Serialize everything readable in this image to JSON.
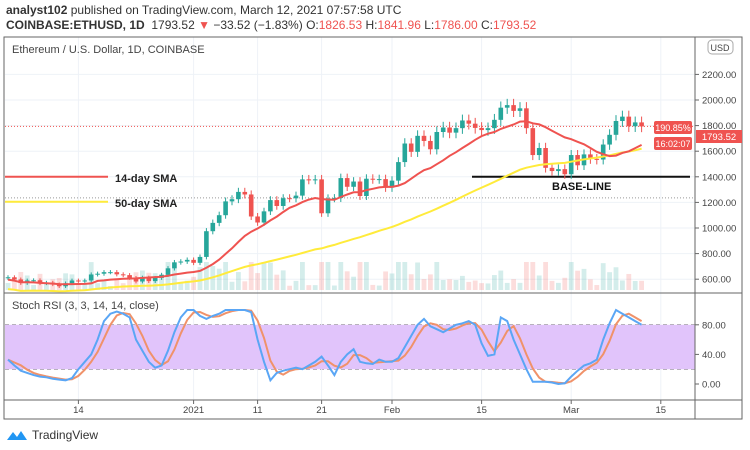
{
  "header": {
    "author": "analyst102",
    "published": "published on TradingView.com, March 12, 2021 07:57:58 UTC",
    "symbol": "COINBASE:ETHUSD, 1D",
    "price": "1793.52",
    "change": "−33.52 (−1.83%)",
    "o_label": "O:",
    "o": "1826.53",
    "h_label": "H:",
    "h": "1841.96",
    "l_label": "L:",
    "l": "1786.00",
    "c_label": "C:",
    "c": "1793.52"
  },
  "chart_title": "Ethereum / U.S. Dollar, 1D, COINBASE",
  "currency": "USD",
  "price_label": "1793.52",
  "countdown": "16:02:07",
  "pct_label": "190.85%",
  "annotations": {
    "sma14": "14-day SMA",
    "sma50": "50-day SMA",
    "baseline": "BASE-LINE"
  },
  "indicator_label": "Stoch RSI (3, 3, 14, 14, close)",
  "brand": "TradingView",
  "colors": {
    "up": "#26a69a",
    "down": "#ef5350",
    "sma14": "#ef5350",
    "sma50": "#ffeb3b",
    "rsi_k": "#5aa6f5",
    "rsi_d": "#f0926a",
    "rsi_band": "#e1c4fb"
  },
  "chart_data": {
    "type": "candlestick",
    "start_date": "2020-12-03",
    "price_ticks": [
      "2200.00",
      "2000.00",
      "1800.00",
      "1600.00",
      "1400.00",
      "1200.00",
      "1000.00",
      "800.00",
      "600.00"
    ],
    "rsi_ticks": [
      "80.00",
      "40.00",
      "0.00"
    ],
    "time_ticks": [
      "14",
      "2021",
      "11",
      "21",
      "Feb",
      "15",
      "Mar",
      "15"
    ],
    "close": [
      615,
      598,
      570,
      590,
      592,
      568,
      573,
      560,
      545,
      568,
      590,
      586,
      590,
      637,
      643,
      655,
      655,
      638,
      632,
      610,
      582,
      612,
      585,
      610,
      634,
      685,
      732,
      738,
      751,
      728,
      774,
      975,
      1040,
      1100,
      1208,
      1225,
      1282,
      1262,
      1090,
      1043,
      1130,
      1218,
      1172,
      1233,
      1232,
      1253,
      1380,
      1376,
      1380,
      1115,
      1232,
      1234,
      1390,
      1322,
      1363,
      1250,
      1385,
      1380,
      1382,
      1315,
      1370,
      1515,
      1660,
      1595,
      1720,
      1680,
      1615,
      1750,
      1785,
      1745,
      1780,
      1840,
      1815,
      1782,
      1765,
      1780,
      1845,
      1940,
      1960,
      1915,
      1935,
      1780,
      1570,
      1625,
      1470,
      1445,
      1460,
      1420,
      1570,
      1490,
      1575,
      1540,
      1535,
      1652,
      1728,
      1836,
      1870,
      1795,
      1825,
      1793.52
    ],
    "stoch_k": [
      33,
      25,
      18,
      15,
      12,
      10,
      9,
      7,
      6,
      5,
      8,
      20,
      30,
      40,
      60,
      85,
      95,
      98,
      95,
      90,
      60,
      45,
      30,
      22,
      25,
      45,
      70,
      90,
      100,
      100,
      92,
      88,
      92,
      95,
      100,
      100,
      100,
      100,
      97,
      60,
      30,
      5,
      15,
      18,
      20,
      22,
      20,
      25,
      30,
      37,
      25,
      12,
      30,
      40,
      47,
      30,
      28,
      27,
      33,
      30,
      30,
      35,
      50,
      65,
      80,
      88,
      78,
      74,
      70,
      75,
      80,
      82,
      85,
      80,
      55,
      38,
      40,
      90,
      85,
      60,
      40,
      20,
      3,
      3,
      3,
      2,
      0,
      1,
      10,
      18,
      25,
      28,
      33,
      60,
      82,
      100,
      95,
      90,
      85,
      80
    ],
    "levels": {
      "baseline": 1400,
      "sma14_marker": 1400,
      "sma50_marker": 1205,
      "dotted": 1235
    },
    "price_range": [
      470,
      2330
    ],
    "rsi_range": [
      -15,
      115
    ]
  }
}
